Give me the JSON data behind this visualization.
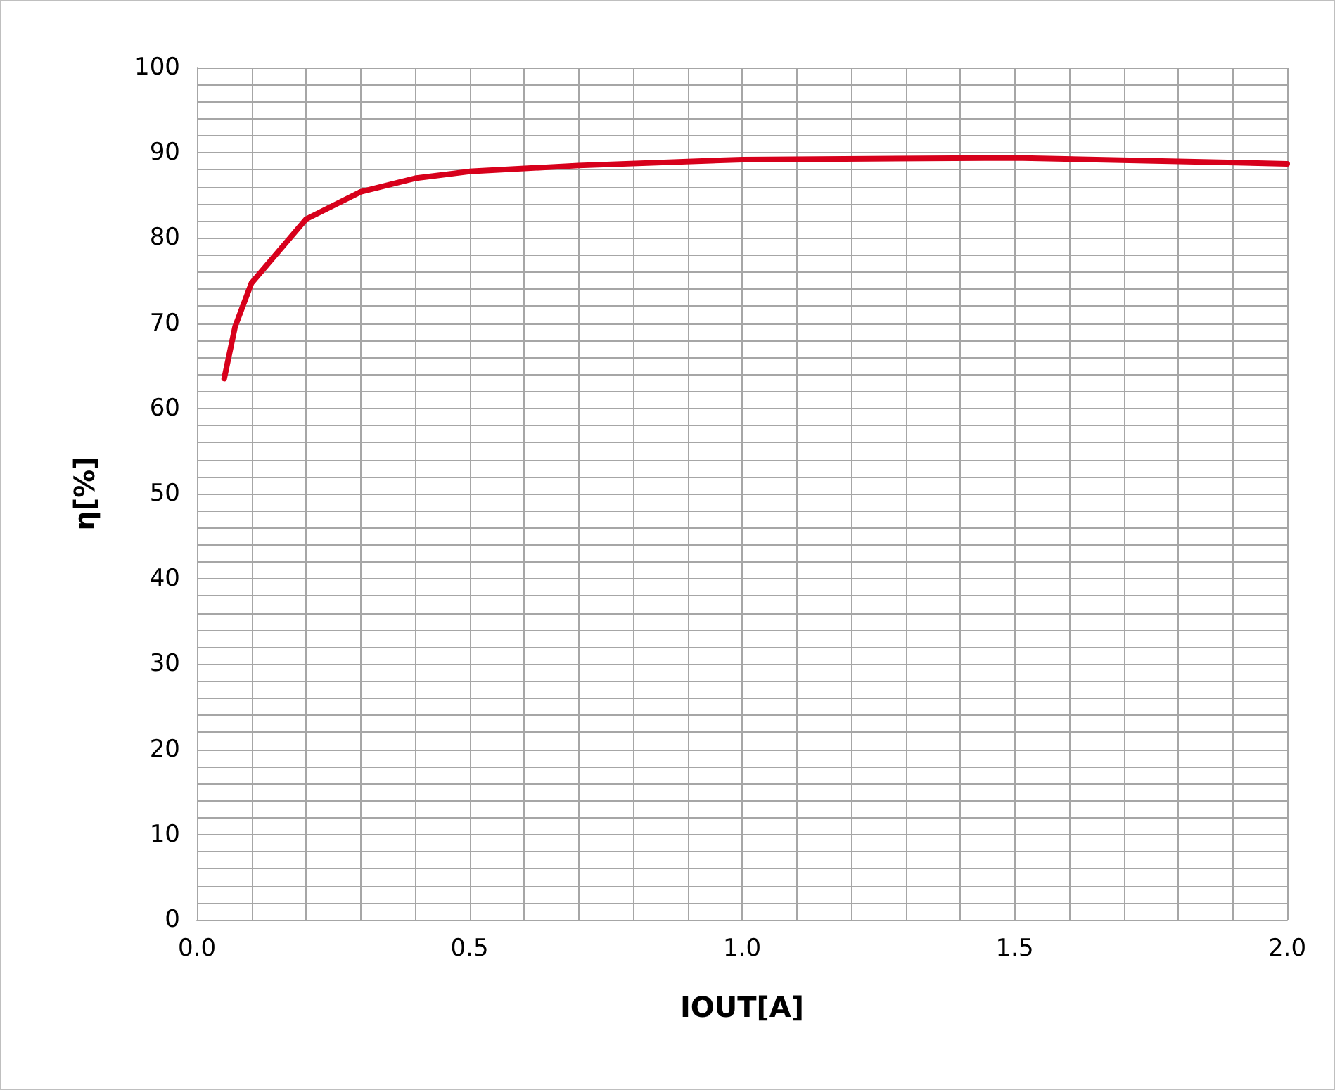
{
  "chart_data": {
    "type": "line",
    "xlabel": "IOUT[A]",
    "ylabel": "η[%]",
    "x": [
      0.05,
      0.07,
      0.1,
      0.2,
      0.3,
      0.4,
      0.5,
      0.7,
      1.0,
      1.5,
      2.0
    ],
    "series": [
      {
        "color": "#d7001b",
        "values": [
          63.5,
          69.6,
          74.7,
          82.2,
          85.4,
          87.0,
          87.8,
          88.5,
          89.2,
          89.4,
          88.7
        ]
      }
    ],
    "xlim": [
      0,
      2
    ],
    "xticks": [
      {
        "value": 0,
        "label": "0.0"
      },
      {
        "value": 0.1,
        "label": null
      },
      {
        "value": 0.2,
        "label": null
      },
      {
        "value": 0.3,
        "label": null
      },
      {
        "value": 0.4,
        "label": null
      },
      {
        "value": 0.5,
        "label": "0.5"
      },
      {
        "value": 0.6,
        "label": null
      },
      {
        "value": 0.7,
        "label": null
      },
      {
        "value": 0.8,
        "label": null
      },
      {
        "value": 0.9,
        "label": null
      },
      {
        "value": 1,
        "label": "1.0"
      },
      {
        "value": 1.1,
        "label": null
      },
      {
        "value": 1.2,
        "label": null
      },
      {
        "value": 1.3,
        "label": null
      },
      {
        "value": 1.4,
        "label": null
      },
      {
        "value": 1.5,
        "label": "1.5"
      },
      {
        "value": 1.6,
        "label": null
      },
      {
        "value": 1.7,
        "label": null
      },
      {
        "value": 1.8,
        "label": null
      },
      {
        "value": 1.9,
        "label": null
      },
      {
        "value": 2,
        "label": "2.0"
      }
    ],
    "ylim": [
      0,
      100
    ],
    "yticks": [
      0,
      {
        "value": 2,
        "label": null
      },
      {
        "value": 4,
        "label": null
      },
      {
        "value": 6,
        "label": null
      },
      {
        "value": 8,
        "label": null
      },
      10,
      {
        "value": 12,
        "label": null
      },
      {
        "value": 14,
        "label": null
      },
      {
        "value": 16,
        "label": null
      },
      {
        "value": 18,
        "label": null
      },
      20,
      {
        "value": 22,
        "label": null
      },
      {
        "value": 24,
        "label": null
      },
      {
        "value": 26,
        "label": null
      },
      {
        "value": 28,
        "label": null
      },
      30,
      {
        "value": 32,
        "label": null
      },
      {
        "value": 34,
        "label": null
      },
      {
        "value": 36,
        "label": null
      },
      {
        "value": 38,
        "label": null
      },
      40,
      {
        "value": 42,
        "label": null
      },
      {
        "value": 44,
        "label": null
      },
      {
        "value": 46,
        "label": null
      },
      {
        "value": 48,
        "label": null
      },
      50,
      {
        "value": 52,
        "label": null
      },
      {
        "value": 54,
        "label": null
      },
      {
        "value": 56,
        "label": null
      },
      {
        "value": 58,
        "label": null
      },
      60,
      {
        "value": 62,
        "label": null
      },
      {
        "value": 64,
        "label": null
      },
      {
        "value": 66,
        "label": null
      },
      {
        "value": 68,
        "label": null
      },
      70,
      {
        "value": 72,
        "label": null
      },
      {
        "value": 74,
        "label": null
      },
      {
        "value": 76,
        "label": null
      },
      {
        "value": 78,
        "label": null
      },
      80,
      {
        "value": 82,
        "label": null
      },
      {
        "value": 84,
        "label": null
      },
      {
        "value": 86,
        "label": null
      },
      {
        "value": 88,
        "label": null
      },
      90,
      {
        "value": 92,
        "label": null
      },
      {
        "value": 94,
        "label": null
      },
      {
        "value": 96,
        "label": null
      },
      {
        "value": 98,
        "label": null
      },
      100
    ],
    "grid": true,
    "marker": "none",
    "line_style": "solid"
  }
}
